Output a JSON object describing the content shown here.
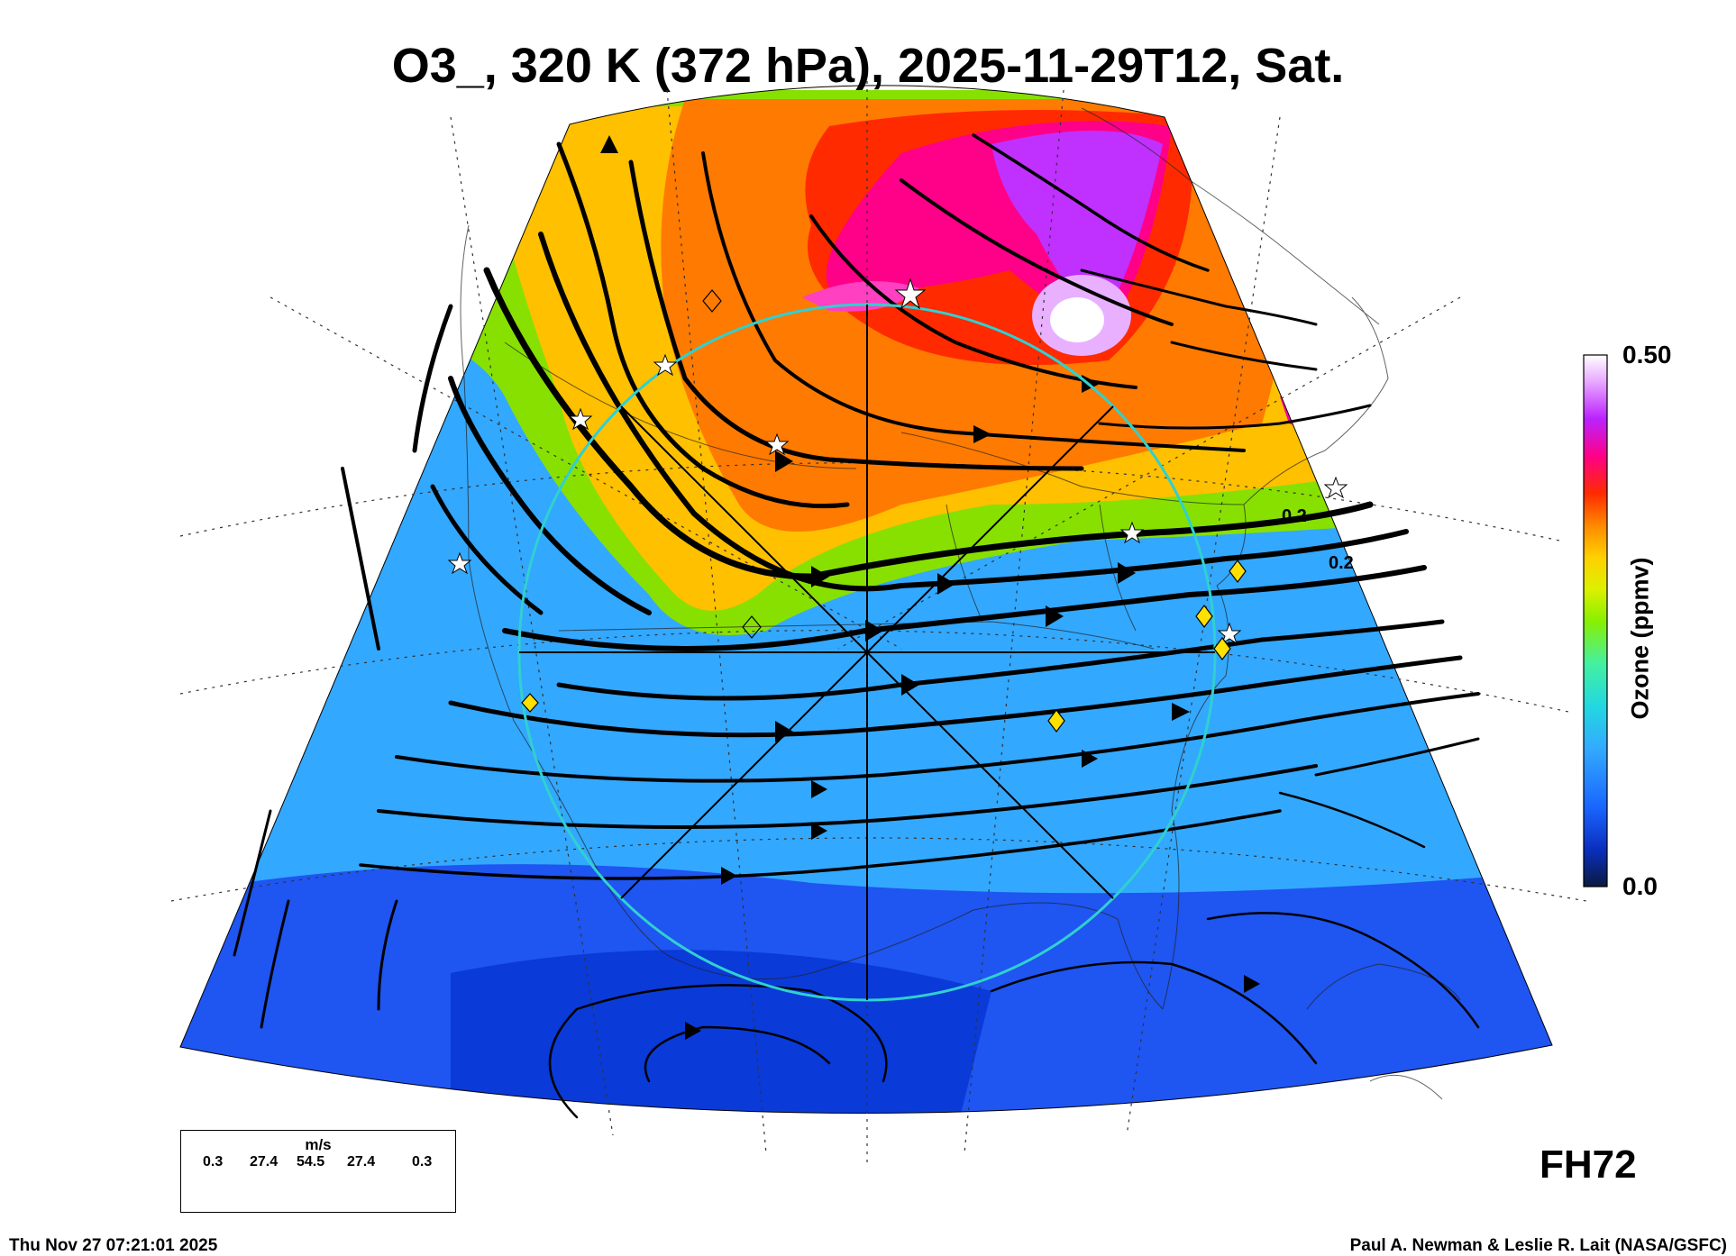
{
  "title": "O3_, 320 K (372 hPa), 2025-11-29T12, Sat.",
  "forecast_hour_label": "FH72",
  "timestamp": "Thu Nov 27 07:21:01 2025",
  "credit": "Paul A. Newman & Leslie R. Lait (NASA/GSFC)",
  "colorbar": {
    "title": "Ozone (ppmv)",
    "max_label": "0.50",
    "min_label": "0.0",
    "range": [
      0.0,
      0.5
    ],
    "colors": [
      "#0a1a40",
      "#0a2fbf",
      "#1a66ff",
      "#33aaff",
      "#22d8e0",
      "#44f0a0",
      "#88f000",
      "#ddf000",
      "#ffd000",
      "#ff8800",
      "#ff2a00",
      "#ff0088",
      "#bb22ff",
      "#e8a8ff",
      "#ffffff"
    ]
  },
  "contour_labels": [
    "0.2",
    "0.2"
  ],
  "wind_legend": {
    "unit": "m/s",
    "values": [
      "0.3",
      "27.4",
      "54.5",
      "27.4",
      "0.3"
    ]
  },
  "field_colors": {
    "high_ozone": "#e040e0",
    "mid_high": "#ff2a00",
    "mid": "#ffb000",
    "mid_low": "#88e000",
    "low": "#33b0ff",
    "very_low": "#0a3ad8"
  },
  "circle_color": "#30d0d0"
}
